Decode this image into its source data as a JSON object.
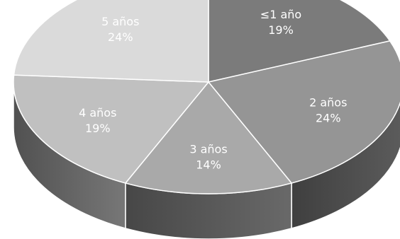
{
  "chart_data": {
    "type": "pie",
    "style": "3d",
    "legend": "none",
    "slices": [
      {
        "label": "≤1 año",
        "percent_label": "19%",
        "value": 19,
        "color": "#7b7b7b"
      },
      {
        "label": "2 años",
        "percent_label": "24%",
        "value": 24,
        "color": "#959595"
      },
      {
        "label": "3 años",
        "percent_label": "14%",
        "value": 14,
        "color": "#a9a9a9"
      },
      {
        "label": "4 años",
        "percent_label": "19%",
        "value": 19,
        "color": "#c0c0c0"
      },
      {
        "label": "5 años",
        "percent_label": "24%",
        "value": 24,
        "color": "#dadada"
      }
    ]
  }
}
